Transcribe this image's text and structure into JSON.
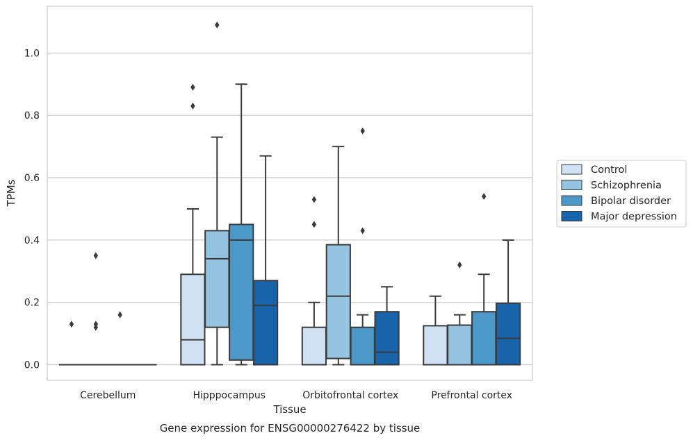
{
  "chart_data": {
    "type": "boxplot",
    "title": "",
    "caption": "Gene expression for ENSG00000276422 by tissue",
    "xlabel": "Tissue",
    "ylabel": "TPMs",
    "ylim": [
      -0.05,
      1.15
    ],
    "yticks": [
      0.0,
      0.2,
      0.4,
      0.6,
      0.8,
      1.0
    ],
    "ytick_labels": [
      "0.0",
      "0.2",
      "0.4",
      "0.6",
      "0.8",
      "1.0"
    ],
    "grid": "horizontal",
    "legend_position": "right",
    "categories": [
      "Cerebellum",
      "Hipppocampus",
      "Orbitofrontal cortex",
      "Prefrontal cortex"
    ],
    "series": [
      {
        "name": "Control",
        "color": "#cfe1f2",
        "boxes": [
          {
            "q1": 0,
            "median": 0,
            "q3": 0,
            "whisker_low": 0,
            "whisker_high": 0,
            "outliers": [
              0.13
            ]
          },
          {
            "q1": 0,
            "median": 0.08,
            "q3": 0.29,
            "whisker_low": 0,
            "whisker_high": 0.5,
            "outliers": [
              0.83,
              0.89
            ]
          },
          {
            "q1": 0,
            "median": 0,
            "q3": 0.12,
            "whisker_low": 0,
            "whisker_high": 0.2,
            "outliers": [
              0.45,
              0.53
            ]
          },
          {
            "q1": 0,
            "median": 0,
            "q3": 0.125,
            "whisker_low": 0,
            "whisker_high": 0.22,
            "outliers": []
          }
        ]
      },
      {
        "name": "Schizophrenia",
        "color": "#94c4df",
        "boxes": [
          {
            "q1": 0,
            "median": 0,
            "q3": 0,
            "whisker_low": 0,
            "whisker_high": 0,
            "outliers": [
              0.12,
              0.13,
              0.35
            ]
          },
          {
            "q1": 0.12,
            "median": 0.34,
            "q3": 0.43,
            "whisker_low": 0,
            "whisker_high": 0.73,
            "outliers": [
              1.09
            ]
          },
          {
            "q1": 0.02,
            "median": 0.22,
            "q3": 0.385,
            "whisker_low": 0,
            "whisker_high": 0.7,
            "outliers": []
          },
          {
            "q1": 0,
            "median": 0,
            "q3": 0.127,
            "whisker_low": 0,
            "whisker_high": 0.16,
            "outliers": [
              0.32
            ]
          }
        ]
      },
      {
        "name": "Bipolar disorder",
        "color": "#4b98c9",
        "boxes": [
          {
            "q1": 0,
            "median": 0,
            "q3": 0,
            "whisker_low": 0,
            "whisker_high": 0,
            "outliers": [
              0.16
            ]
          },
          {
            "q1": 0.015,
            "median": 0.4,
            "q3": 0.45,
            "whisker_low": 0,
            "whisker_high": 0.9,
            "outliers": []
          },
          {
            "q1": 0,
            "median": 0,
            "q3": 0.12,
            "whisker_low": 0,
            "whisker_high": 0.16,
            "outliers": [
              0.43,
              0.75
            ]
          },
          {
            "q1": 0,
            "median": 0,
            "q3": 0.17,
            "whisker_low": 0,
            "whisker_high": 0.29,
            "outliers": [
              0.54
            ]
          }
        ]
      },
      {
        "name": "Major depression",
        "color": "#1764ab",
        "boxes": [
          {
            "q1": 0,
            "median": 0,
            "q3": 0,
            "whisker_low": 0,
            "whisker_high": 0,
            "outliers": []
          },
          {
            "q1": 0,
            "median": 0.19,
            "q3": 0.27,
            "whisker_low": 0,
            "whisker_high": 0.67,
            "outliers": []
          },
          {
            "q1": 0,
            "median": 0.04,
            "q3": 0.17,
            "whisker_low": 0,
            "whisker_high": 0.25,
            "outliers": []
          },
          {
            "q1": 0,
            "median": 0.085,
            "q3": 0.197,
            "whisker_low": 0,
            "whisker_high": 0.4,
            "outliers": []
          }
        ]
      }
    ]
  }
}
